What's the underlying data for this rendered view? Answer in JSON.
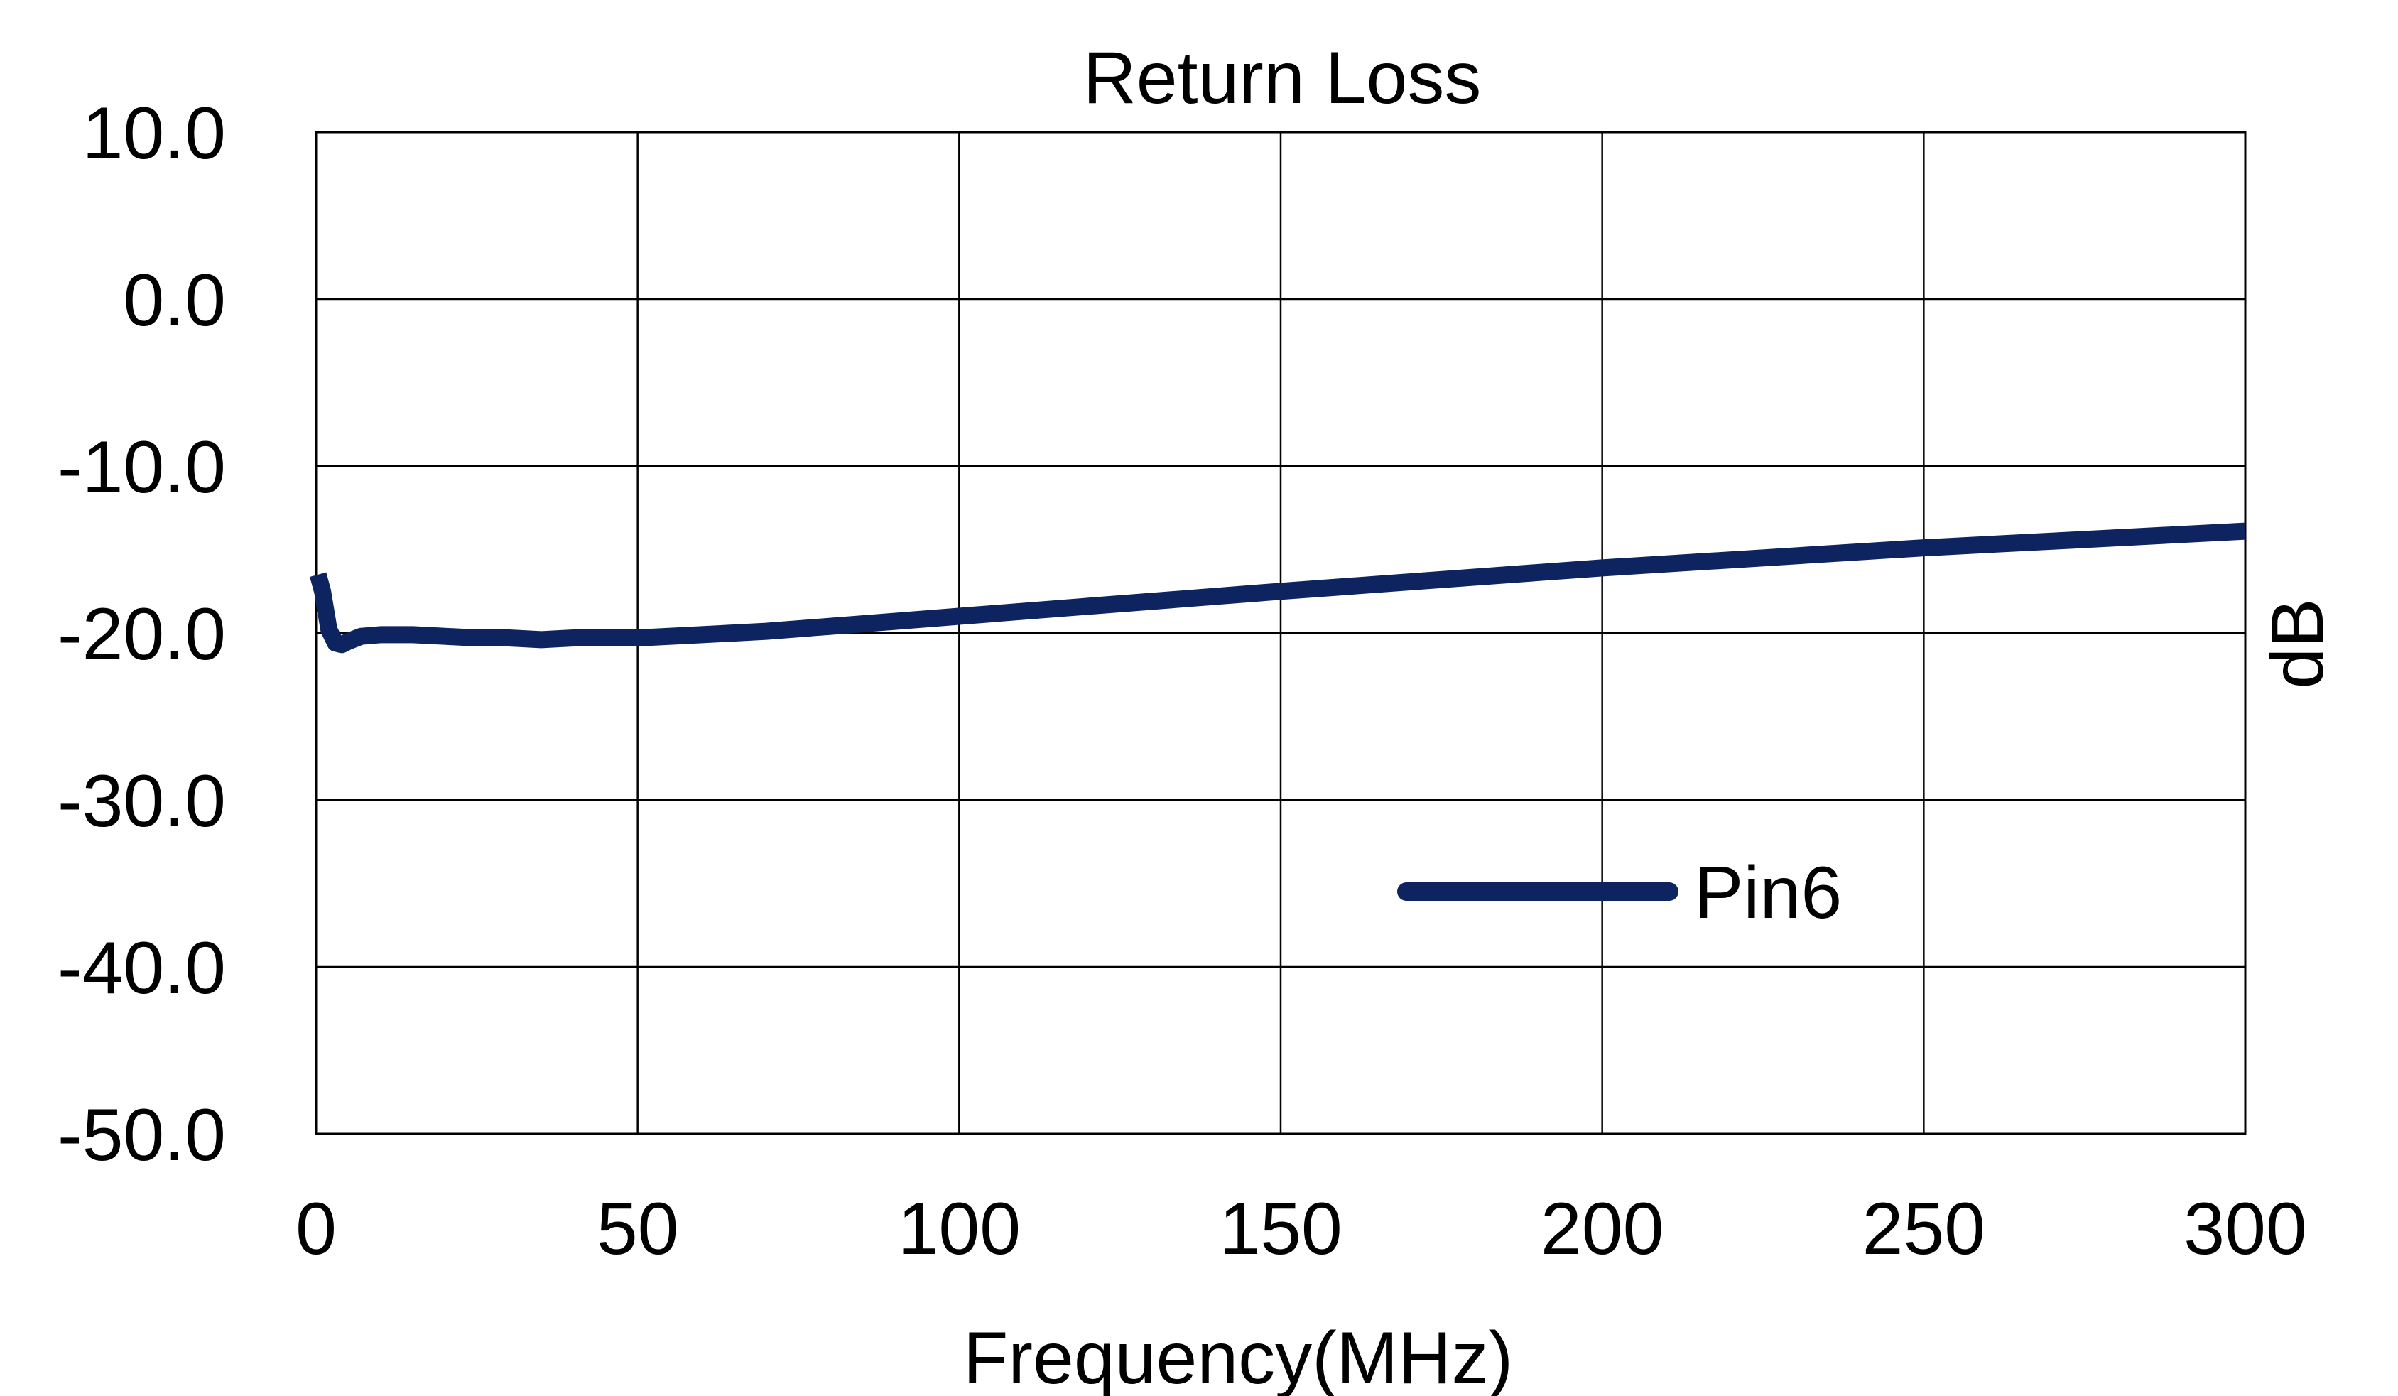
{
  "chart_data": {
    "type": "line",
    "title": "Return Loss",
    "xlabel": "Frequency(MHz)",
    "ylabel": "dB",
    "xlim": [
      0,
      300
    ],
    "ylim": [
      -50,
      10
    ],
    "xticks": [
      0,
      50,
      100,
      150,
      200,
      250,
      300
    ],
    "xtick_labels": [
      "0",
      "50",
      "100",
      "150",
      "200",
      "250",
      "300"
    ],
    "yticks": [
      10,
      0,
      -10,
      -20,
      -30,
      -40,
      -50
    ],
    "ytick_labels": [
      "10.0",
      "0.0",
      "-10.0",
      "-20.0",
      "-30.0",
      "-40.0",
      "-50.0"
    ],
    "grid": true,
    "legend_position": "lower-center",
    "series": [
      {
        "name": "Pin6",
        "color": "#0d2460",
        "x": [
          0.3,
          1,
          2,
          3,
          4,
          5,
          7,
          10,
          15,
          20,
          25,
          30,
          35,
          40,
          50,
          60,
          70,
          80,
          90,
          100,
          120,
          150,
          175,
          200,
          225,
          250,
          275,
          300
        ],
        "y": [
          -16.5,
          -17.5,
          -19.8,
          -20.6,
          -20.7,
          -20.5,
          -20.2,
          -20.1,
          -20.1,
          -20.2,
          -20.3,
          -20.3,
          -20.4,
          -20.3,
          -20.3,
          -20.1,
          -19.9,
          -19.6,
          -19.3,
          -19.0,
          -18.4,
          -17.5,
          -16.8,
          -16.1,
          -15.5,
          -14.9,
          -14.4,
          -13.9
        ]
      }
    ]
  }
}
